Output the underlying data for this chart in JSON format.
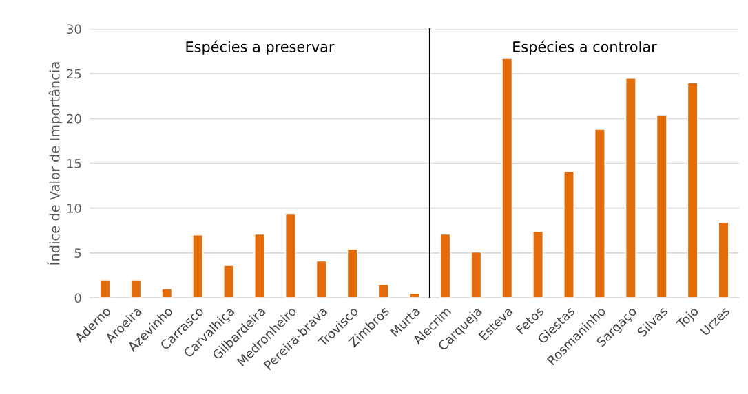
{
  "chart_data": [
    {
      "type": "bar",
      "title": "Espécies a preservar",
      "ylabel": "Índice de Valor de Importância",
      "categories": [
        "Aderno",
        "Aroeira",
        "Azevinho",
        "Carrasco",
        "Carvalhiça",
        "Gilbardeira",
        "Medronheiro",
        "Pereira-brava",
        "Trovisco",
        "Zimbros",
        "Murta"
      ],
      "values": [
        2.0,
        2.0,
        1.0,
        7.0,
        3.6,
        7.1,
        9.4,
        4.1,
        5.4,
        1.5,
        0.5
      ],
      "color": "#e36c0a",
      "ylim": [
        0,
        30
      ],
      "yticks": [
        0,
        5,
        10,
        15,
        20,
        25,
        30
      ],
      "grid": "y"
    },
    {
      "type": "bar",
      "title": "Espécies a controlar",
      "categories": [
        "Alecrim",
        "Carqueja",
        "Esteva",
        "Fetos",
        "Giestas",
        "Rosmaninho",
        "Sargaço",
        "Silvas",
        "Tojo",
        "Urzes"
      ],
      "values": [
        7.1,
        5.1,
        26.7,
        7.4,
        14.1,
        18.8,
        24.5,
        20.4,
        24.0,
        8.4
      ],
      "color": "#e36c0a",
      "ylim": [
        0,
        30
      ],
      "yticks": [
        0,
        5,
        10,
        15,
        20,
        25,
        30
      ],
      "grid": "y",
      "tick_labels": "x"
    }
  ]
}
